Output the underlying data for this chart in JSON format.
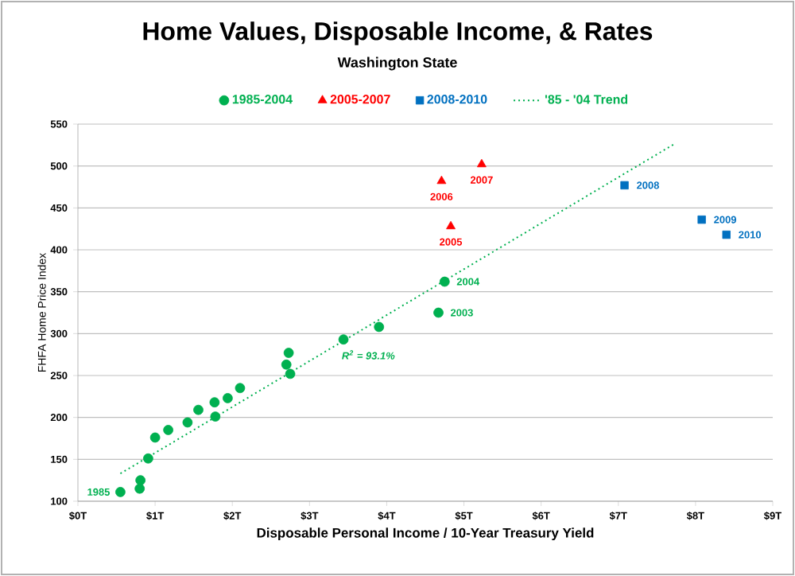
{
  "chart_data": {
    "type": "scatter",
    "title": "Home Values, Disposable Income, & Rates",
    "subtitle": "Washington State",
    "xlabel": "Disposable Personal Income / 10-Year Treasury Yield",
    "ylabel": "FHFA Home Price Index",
    "xlim": [
      0,
      9
    ],
    "ylim": [
      100,
      550
    ],
    "xticks": [
      {
        "value": 0,
        "label": "$0T"
      },
      {
        "value": 1,
        "label": "$1T"
      },
      {
        "value": 2,
        "label": "$2T"
      },
      {
        "value": 3,
        "label": "$3T"
      },
      {
        "value": 4,
        "label": "$4T"
      },
      {
        "value": 5,
        "label": "$5T"
      },
      {
        "value": 6,
        "label": "$6T"
      },
      {
        "value": 7,
        "label": "$7T"
      },
      {
        "value": 8,
        "label": "$8T"
      },
      {
        "value": 9,
        "label": "$9T"
      }
    ],
    "yticks": [
      100,
      150,
      200,
      250,
      300,
      350,
      400,
      450,
      500,
      550
    ],
    "grid": "y",
    "legend": "top",
    "series": [
      {
        "name": "1985-2004",
        "marker": "circle",
        "color": "#00b050",
        "x": [
          0.55,
          0.8,
          0.81,
          0.91,
          1.0,
          1.17,
          1.42,
          1.56,
          1.77,
          1.78,
          1.94,
          2.1,
          2.7,
          2.73,
          2.75,
          3.44,
          3.9,
          4.67,
          4.75
        ],
        "values": [
          111,
          115,
          125,
          151,
          176,
          185,
          194,
          209,
          218,
          201,
          223,
          235,
          263,
          277,
          252,
          293,
          308,
          325,
          362
        ]
      },
      {
        "name": "2005-2007",
        "marker": "triangle",
        "color": "#ff0000",
        "x": [
          4.83,
          4.71,
          5.23
        ],
        "values": [
          428,
          482,
          502
        ]
      },
      {
        "name": "2008-2010",
        "marker": "square",
        "color": "#0070c0",
        "x": [
          7.08,
          8.08,
          8.4
        ],
        "values": [
          477,
          436,
          418
        ]
      },
      {
        "name": "'85 - '04 Trend",
        "type": "line",
        "marker": "none",
        "line_style": "dotted",
        "color": "#00b050",
        "x": [
          0.55,
          7.72
        ],
        "values": [
          133,
          526
        ]
      }
    ],
    "annotations": [
      {
        "text": "1985",
        "x": 0.55,
        "y": 111
      },
      {
        "text": "2003",
        "x": 4.67,
        "y": 325
      },
      {
        "text": "2004",
        "x": 4.75,
        "y": 362
      },
      {
        "text": "2005",
        "x": 4.83,
        "y": 428
      },
      {
        "text": "2006",
        "x": 4.71,
        "y": 482
      },
      {
        "text": "2007",
        "x": 5.23,
        "y": 502
      },
      {
        "text": "2008",
        "x": 7.08,
        "y": 477
      },
      {
        "text": "2009",
        "x": 8.08,
        "y": 436
      },
      {
        "text": "2010",
        "x": 8.4,
        "y": 418
      },
      "R$^{2}$ = 93.1%"
    ]
  }
}
